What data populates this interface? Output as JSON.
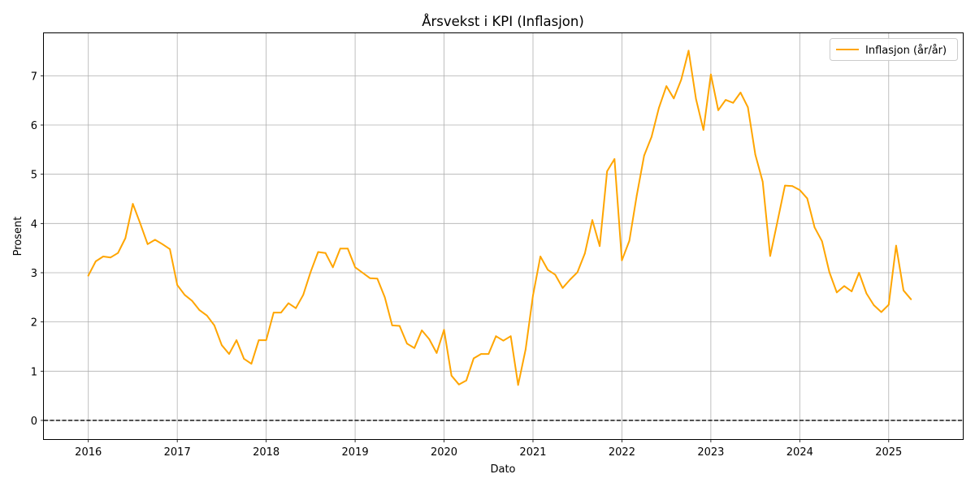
{
  "chart_data": {
    "type": "line",
    "title": "Årsvekst i KPI (Inflasjon)",
    "xlabel": "Dato",
    "ylabel": "Prosent",
    "x_tick_labels": [
      "2016",
      "2017",
      "2018",
      "2019",
      "2020",
      "2021",
      "2022",
      "2023",
      "2024",
      "2025"
    ],
    "y_tick_labels": [
      "0",
      "1",
      "2",
      "3",
      "4",
      "5",
      "6",
      "7"
    ],
    "xlim": [
      "2015-07",
      "2025-11"
    ],
    "ylim": [
      -0.38,
      7.88
    ],
    "grid": true,
    "legend_position": "top-right",
    "reference_line": {
      "y": 0,
      "style": "dashed",
      "color": "#000000"
    },
    "series": [
      {
        "name": "Inflasjon (år/år)",
        "color": "#ffa500",
        "x": [
          "2016-01",
          "2016-02",
          "2016-03",
          "2016-04",
          "2016-05",
          "2016-06",
          "2016-07",
          "2016-08",
          "2016-09",
          "2016-10",
          "2016-11",
          "2016-12",
          "2017-01",
          "2017-02",
          "2017-03",
          "2017-04",
          "2017-05",
          "2017-06",
          "2017-07",
          "2017-08",
          "2017-09",
          "2017-10",
          "2017-11",
          "2017-12",
          "2018-01",
          "2018-02",
          "2018-03",
          "2018-04",
          "2018-05",
          "2018-06",
          "2018-07",
          "2018-08",
          "2018-09",
          "2018-10",
          "2018-11",
          "2018-12",
          "2019-01",
          "2019-02",
          "2019-03",
          "2019-04",
          "2019-05",
          "2019-06",
          "2019-07",
          "2019-08",
          "2019-09",
          "2019-10",
          "2019-11",
          "2019-12",
          "2020-01",
          "2020-02",
          "2020-03",
          "2020-04",
          "2020-05",
          "2020-06",
          "2020-07",
          "2020-08",
          "2020-09",
          "2020-10",
          "2020-11",
          "2020-12",
          "2021-01",
          "2021-02",
          "2021-03",
          "2021-04",
          "2021-05",
          "2021-06",
          "2021-07",
          "2021-08",
          "2021-09",
          "2021-10",
          "2021-11",
          "2021-12",
          "2022-01",
          "2022-02",
          "2022-03",
          "2022-04",
          "2022-05",
          "2022-06",
          "2022-07",
          "2022-08",
          "2022-09",
          "2022-10",
          "2022-11",
          "2022-12",
          "2023-01",
          "2023-02",
          "2023-03",
          "2023-04",
          "2023-05",
          "2023-06",
          "2023-07",
          "2023-08",
          "2023-09",
          "2023-10",
          "2023-11",
          "2023-12",
          "2024-01",
          "2024-02",
          "2024-03",
          "2024-04",
          "2024-05",
          "2024-06",
          "2024-07",
          "2024-08",
          "2024-09",
          "2024-10",
          "2024-11",
          "2024-12",
          "2025-01",
          "2025-02",
          "2025-03",
          "2025-04"
        ],
        "values": [
          2.94,
          3.23,
          3.33,
          3.31,
          3.4,
          3.7,
          4.4,
          4.0,
          3.58,
          3.67,
          3.58,
          3.48,
          2.75,
          2.55,
          2.43,
          2.24,
          2.13,
          1.93,
          1.53,
          1.35,
          1.63,
          1.25,
          1.15,
          1.63,
          1.63,
          2.19,
          2.19,
          2.38,
          2.28,
          2.55,
          3.02,
          3.42,
          3.4,
          3.11,
          3.49,
          3.49,
          3.11,
          3.0,
          2.89,
          2.88,
          2.5,
          1.93,
          1.92,
          1.56,
          1.47,
          1.83,
          1.65,
          1.37,
          1.84,
          0.91,
          0.73,
          0.81,
          1.26,
          1.35,
          1.35,
          1.71,
          1.62,
          1.71,
          0.72,
          1.44,
          2.54,
          3.33,
          3.06,
          2.96,
          2.69,
          2.86,
          3.01,
          3.39,
          4.07,
          3.54,
          5.06,
          5.31,
          3.25,
          3.65,
          4.57,
          5.38,
          5.76,
          6.35,
          6.79,
          6.54,
          6.92,
          7.51,
          6.53,
          5.9,
          7.03,
          6.3,
          6.51,
          6.45,
          6.66,
          6.36,
          5.4,
          4.85,
          3.34,
          4.05,
          4.77,
          4.76,
          4.68,
          4.51,
          3.92,
          3.64,
          3.01,
          2.6,
          2.73,
          2.62,
          3.0,
          2.58,
          2.34,
          2.2,
          2.35,
          3.55,
          2.64,
          2.46
        ]
      }
    ]
  }
}
